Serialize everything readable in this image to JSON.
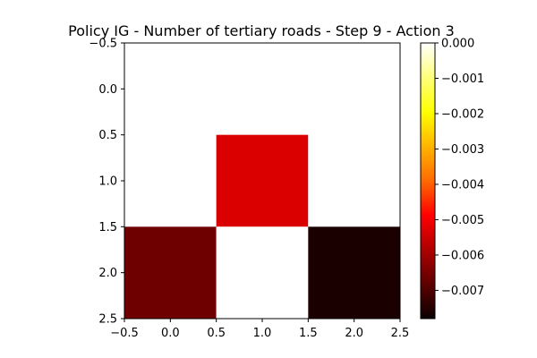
{
  "chart_data": {
    "type": "heatmap",
    "title": "Policy IG - Number of tertiary roads - Step 9 - Action 3",
    "xlabel": "",
    "ylabel": "",
    "xlim": [
      -0.5,
      2.5
    ],
    "ylim": [
      2.5,
      -0.5
    ],
    "x_ticks": [
      "−0.5",
      "0.0",
      "0.5",
      "1.0",
      "1.5",
      "2.0",
      "2.5"
    ],
    "y_ticks": [
      "−0.5",
      "0.0",
      "0.5",
      "1.0",
      "1.5",
      "2.0",
      "2.5"
    ],
    "matrix": [
      [
        0.0,
        0.0,
        0.0
      ],
      [
        0.0,
        -0.0055,
        0.0
      ],
      [
        -0.0068,
        0.0,
        -0.0078
      ]
    ],
    "colorbar": {
      "cmap": "hot",
      "range": [
        -0.0078,
        0.0
      ],
      "ticks": [
        "0.000",
        "−0.001",
        "−0.002",
        "−0.003",
        "−0.004",
        "−0.005",
        "−0.006",
        "−0.007"
      ]
    },
    "grid": false
  }
}
